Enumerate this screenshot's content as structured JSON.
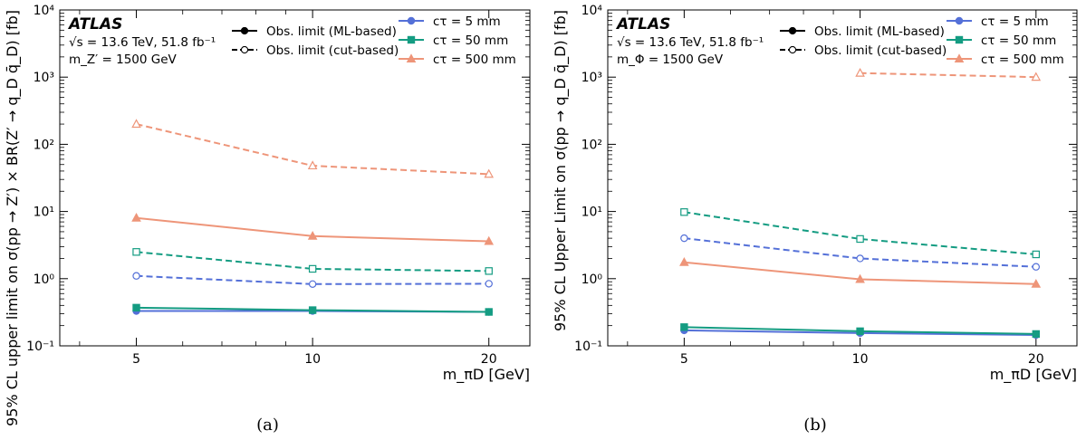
{
  "chart_data": [
    {
      "type": "line",
      "panel_label": "(a)",
      "experiment": "ATLAS",
      "energy_line": "√s = 13.6 TeV, 51.8 fb⁻¹",
      "mass_line": "m_Z′ = 1500 GeV",
      "xlabel": "m_πD [GeV]",
      "ylabel": "95% CL upper limit on σ(pp → Z′) × BR(Z′ → q_D q̄_D) [fb]",
      "xscale": "log",
      "yscale": "log",
      "xlim": [
        3.7,
        23.5
      ],
      "ylim": [
        0.1,
        10000
      ],
      "x_ticks": [
        "5",
        "10",
        "20"
      ],
      "x_tick_values": [
        5,
        10,
        20
      ],
      "y_ticks": [
        "10⁻¹",
        "10⁰",
        "10¹",
        "10²",
        "10³",
        "10⁴"
      ],
      "y_tick_values": [
        0.1,
        1,
        10,
        100,
        1000,
        10000
      ],
      "legend_style": [
        {
          "label": "Obs. limit (ML-based)",
          "line": "solid",
          "marker": "filled"
        },
        {
          "label": "Obs. limit (cut-based)",
          "line": "dashed",
          "marker": "open"
        }
      ],
      "legend_colors": [
        {
          "label": "cτ = 5 mm",
          "color": "#5470d8",
          "marker": "circle"
        },
        {
          "label": "cτ = 50 mm",
          "color": "#149c82",
          "marker": "square"
        },
        {
          "label": "cτ = 500 mm",
          "color": "#ee9579",
          "marker": "triangle"
        }
      ],
      "series": [
        {
          "name": "cτ = 5 mm",
          "method": "ML-based",
          "color": "#5470d8",
          "marker": "circle",
          "dashed": false,
          "x": [
            5,
            10,
            20
          ],
          "y": [
            0.33,
            0.33,
            0.32
          ]
        },
        {
          "name": "cτ = 50 mm",
          "method": "ML-based",
          "color": "#149c82",
          "marker": "square",
          "dashed": false,
          "x": [
            5,
            10,
            20
          ],
          "y": [
            0.37,
            0.34,
            0.32
          ]
        },
        {
          "name": "cτ = 500 mm",
          "method": "ML-based",
          "color": "#ee9579",
          "marker": "triangle",
          "dashed": false,
          "x": [
            5,
            10,
            20
          ],
          "y": [
            8.0,
            4.3,
            3.6
          ]
        },
        {
          "name": "cτ = 5 mm",
          "method": "cut-based",
          "color": "#5470d8",
          "marker": "circle",
          "dashed": true,
          "x": [
            5,
            10,
            20
          ],
          "y": [
            1.1,
            0.83,
            0.84
          ]
        },
        {
          "name": "cτ = 50 mm",
          "method": "cut-based",
          "color": "#149c82",
          "marker": "square",
          "dashed": true,
          "x": [
            5,
            10,
            20
          ],
          "y": [
            2.5,
            1.4,
            1.3
          ]
        },
        {
          "name": "cτ = 500 mm",
          "method": "cut-based",
          "color": "#ee9579",
          "marker": "triangle",
          "dashed": true,
          "x": [
            5,
            10,
            20
          ],
          "y": [
            200,
            48,
            36
          ]
        }
      ]
    },
    {
      "type": "line",
      "panel_label": "(b)",
      "experiment": "ATLAS",
      "energy_line": "√s = 13.6 TeV, 51.8 fb⁻¹",
      "mass_line": "m_Φ = 1500 GeV",
      "xlabel": "m_πD [GeV]",
      "ylabel": "95% CL Upper Limit on σ(pp → q_D q̄_D) [fb]",
      "xscale": "log",
      "yscale": "log",
      "xlim": [
        3.7,
        23.5
      ],
      "ylim": [
        0.1,
        10000
      ],
      "x_ticks": [
        "5",
        "10",
        "20"
      ],
      "x_tick_values": [
        5,
        10,
        20
      ],
      "y_ticks": [
        "10⁻¹",
        "10⁰",
        "10¹",
        "10²",
        "10³",
        "10⁴"
      ],
      "y_tick_values": [
        0.1,
        1,
        10,
        100,
        1000,
        10000
      ],
      "legend_style": [
        {
          "label": "Obs. limit (ML-based)",
          "line": "solid",
          "marker": "filled"
        },
        {
          "label": "Obs. limit (cut-based)",
          "line": "dashed",
          "marker": "open"
        }
      ],
      "legend_colors": [
        {
          "label": "cτ = 5 mm",
          "color": "#5470d8",
          "marker": "circle"
        },
        {
          "label": "cτ = 50 mm",
          "color": "#149c82",
          "marker": "square"
        },
        {
          "label": "cτ = 500 mm",
          "color": "#ee9579",
          "marker": "triangle"
        }
      ],
      "series": [
        {
          "name": "cτ = 5 mm",
          "method": "ML-based",
          "color": "#5470d8",
          "marker": "circle",
          "dashed": false,
          "x": [
            5,
            10,
            20
          ],
          "y": [
            0.17,
            0.155,
            0.145
          ]
        },
        {
          "name": "cτ = 50 mm",
          "method": "ML-based",
          "color": "#149c82",
          "marker": "square",
          "dashed": false,
          "x": [
            5,
            10,
            20
          ],
          "y": [
            0.19,
            0.165,
            0.15
          ]
        },
        {
          "name": "cτ = 500 mm",
          "method": "ML-based",
          "color": "#ee9579",
          "marker": "triangle",
          "dashed": false,
          "x": [
            5,
            10,
            20
          ],
          "y": [
            1.75,
            0.98,
            0.83
          ]
        },
        {
          "name": "cτ = 5 mm",
          "method": "cut-based",
          "color": "#5470d8",
          "marker": "circle",
          "dashed": true,
          "x": [
            5,
            10,
            20
          ],
          "y": [
            4.0,
            2.0,
            1.5
          ]
        },
        {
          "name": "cτ = 50 mm",
          "method": "cut-based",
          "color": "#149c82",
          "marker": "square",
          "dashed": true,
          "x": [
            5,
            10,
            20
          ],
          "y": [
            9.8,
            3.9,
            2.3
          ]
        },
        {
          "name": "cτ = 500 mm",
          "method": "cut-based",
          "color": "#ee9579",
          "marker": "triangle",
          "dashed": true,
          "x": [
            10,
            20
          ],
          "y": [
            1150,
            1000
          ]
        }
      ]
    }
  ]
}
